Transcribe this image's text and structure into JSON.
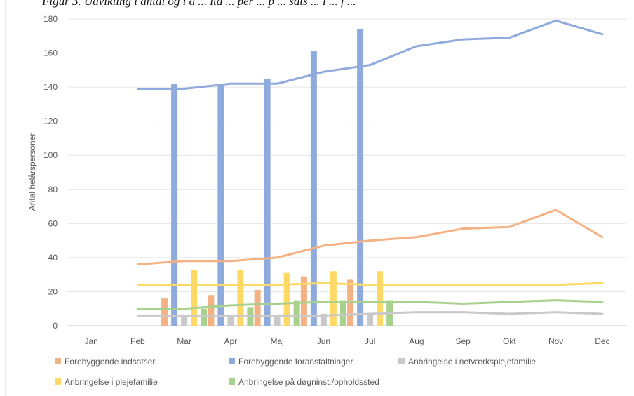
{
  "caption": "Figur 3. Udvikling i antal og i a ... lta ... per ... p ... sats ... i ... f ... ",
  "chart_data": {
    "type": "bar+line",
    "categories": [
      "Jan",
      "Feb",
      "Mar",
      "Apr",
      "Maj",
      "Jun",
      "Jul",
      "Aug",
      "Sep",
      "Okt",
      "Nov",
      "Dec"
    ],
    "ylabel": "Antal helårspersoner",
    "ylim": [
      0,
      180
    ],
    "yticks": [
      0,
      20,
      40,
      60,
      80,
      100,
      120,
      140,
      160,
      180
    ],
    "grid": true,
    "legend_position": "bottom",
    "bar_series": [
      {
        "name": "Forebyggende indsatser",
        "color": "#F4B183",
        "values": [
          null,
          null,
          16,
          18,
          21,
          29,
          27,
          null,
          null,
          null,
          null,
          null
        ]
      },
      {
        "name": "Forebyggende foranstaltninger",
        "color": "#8FAADC",
        "values": [
          null,
          null,
          142,
          142,
          145,
          161,
          174,
          null,
          null,
          null,
          null,
          null
        ]
      },
      {
        "name": "Anbringelse i netværksplejefamilie",
        "color": "#C9C9C9",
        "values": [
          null,
          null,
          6,
          5,
          6,
          7,
          7,
          null,
          null,
          null,
          null,
          null
        ]
      },
      {
        "name": "Anbringelse i plejefamilie",
        "color": "#FFD966",
        "values": [
          null,
          null,
          33,
          33,
          31,
          32,
          32,
          null,
          null,
          null,
          null,
          null
        ]
      },
      {
        "name": "Anbringelse på døgninst./opholdssted",
        "color": "#A9D18E",
        "values": [
          null,
          null,
          10,
          11,
          15,
          15,
          15,
          null,
          null,
          null,
          null,
          null
        ]
      }
    ],
    "line_series": [
      {
        "name": "Forebyggende indsatser",
        "color": "#F4B183",
        "values": [
          null,
          36,
          38,
          38,
          40,
          47,
          50,
          52,
          57,
          58,
          68,
          52
        ]
      },
      {
        "name": "Forebyggende foranstaltninger",
        "color": "#8FAADC",
        "values": [
          null,
          139,
          139,
          142,
          142,
          149,
          153,
          164,
          168,
          169,
          179,
          171
        ]
      },
      {
        "name": "Anbringelse i netværksplejefamilie",
        "color": "#C9C9C9",
        "values": [
          null,
          6,
          6,
          6,
          6,
          6,
          7,
          8,
          8,
          7,
          8,
          7
        ]
      },
      {
        "name": "Anbringelse i plejefamilie",
        "color": "#FFD966",
        "values": [
          null,
          24,
          24,
          24,
          24,
          25,
          24,
          24,
          24,
          24,
          24,
          25
        ]
      },
      {
        "name": "Anbringelse på døgninst./opholdssted",
        "color": "#A9D18E",
        "values": [
          null,
          10,
          10,
          12,
          13,
          14,
          14,
          14,
          13,
          14,
          15,
          14
        ]
      }
    ]
  }
}
